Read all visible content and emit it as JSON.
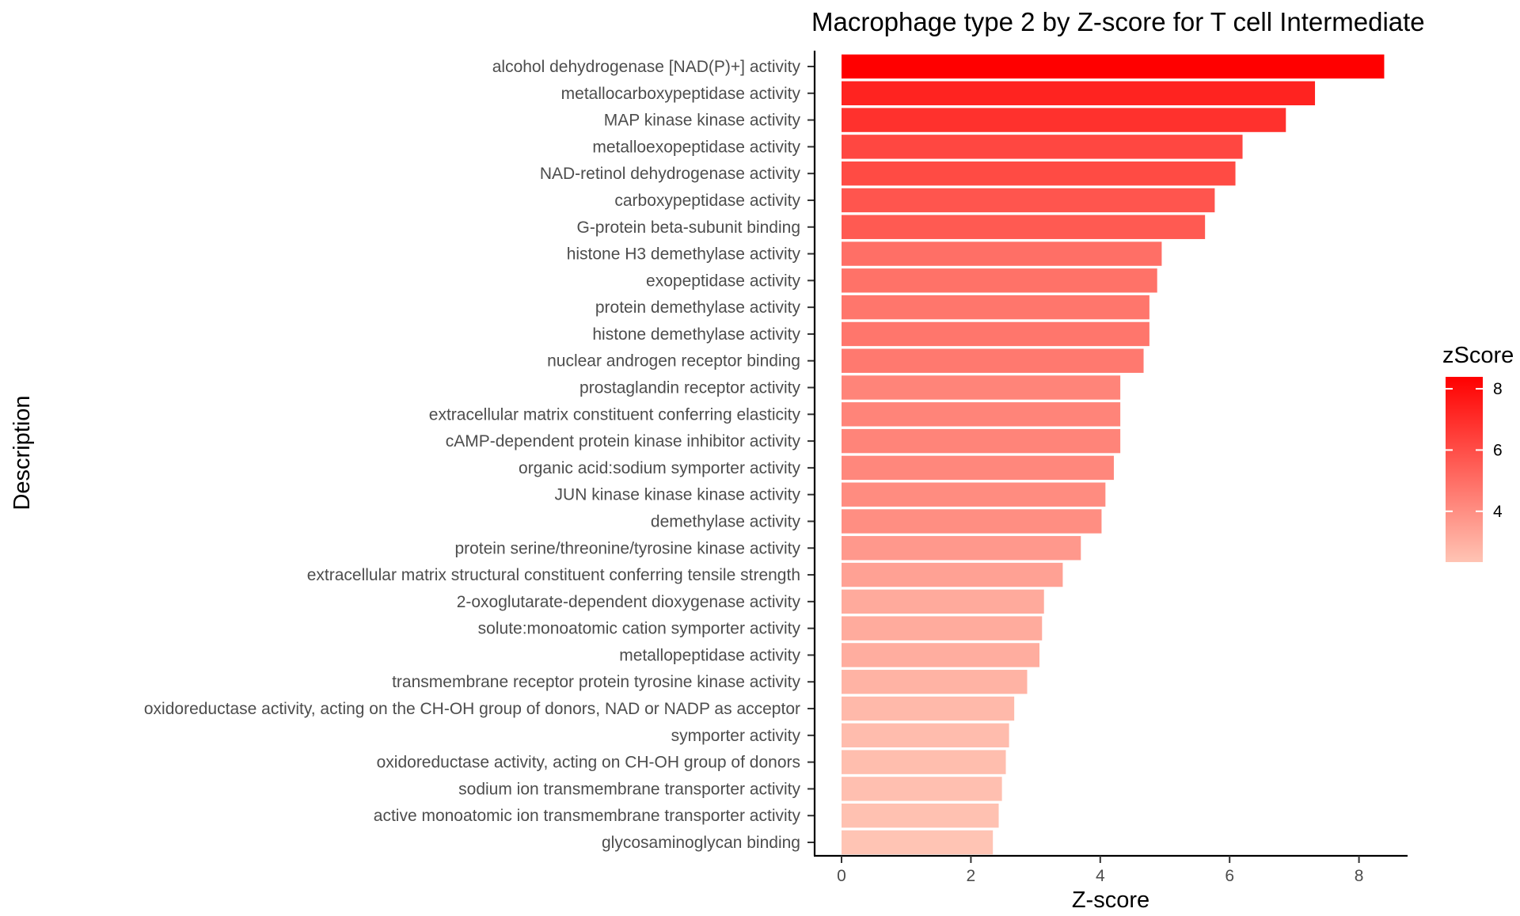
{
  "chart_data": {
    "type": "bar",
    "orientation": "horizontal",
    "title": "Macrophage type 2 by Z-score for T cell Intermediate",
    "xlabel": "Z-score",
    "ylabel": "Description",
    "xlim": [
      -0.4,
      8.8
    ],
    "xticks": [
      0,
      2,
      4,
      6,
      8
    ],
    "grid": false,
    "categories": [
      "alcohol dehydrogenase [NAD(P)+] activity",
      "metallocarboxypeptidase activity",
      "MAP kinase kinase activity",
      "metalloexopeptidase activity",
      "NAD-retinol dehydrogenase activity",
      "carboxypeptidase activity",
      "G-protein beta-subunit binding",
      "histone H3 demethylase activity",
      "exopeptidase activity",
      "protein demethylase activity",
      "histone demethylase activity",
      "nuclear androgen receptor binding",
      "prostaglandin receptor activity",
      "extracellular matrix constituent conferring elasticity",
      "cAMP-dependent protein kinase inhibitor activity",
      "organic acid:sodium symporter activity",
      "JUN kinase kinase kinase activity",
      "demethylase activity",
      "protein serine/threonine/tyrosine kinase activity",
      "extracellular matrix structural constituent conferring tensile strength",
      "2-oxoglutarate-dependent dioxygenase activity",
      "solute:monoatomic cation symporter activity",
      "metallopeptidase activity",
      "transmembrane receptor protein tyrosine kinase activity",
      "oxidoreductase activity, acting on the CH-OH group of donors, NAD or NADP as acceptor",
      "symporter activity",
      "oxidoreductase activity, acting on CH-OH group of donors",
      "sodium ion transmembrane transporter activity",
      "active monoatomic ion transmembrane transporter activity",
      "glycosaminoglycan binding"
    ],
    "values": [
      8.39,
      7.32,
      6.87,
      6.2,
      6.09,
      5.77,
      5.62,
      4.95,
      4.88,
      4.76,
      4.76,
      4.67,
      4.31,
      4.31,
      4.31,
      4.21,
      4.08,
      4.02,
      3.7,
      3.42,
      3.13,
      3.1,
      3.06,
      2.87,
      2.67,
      2.59,
      2.54,
      2.48,
      2.43,
      2.34
    ],
    "legend": {
      "title": "zScore",
      "position": "right",
      "ticks": [
        4,
        6,
        8
      ],
      "range": [
        2.34,
        8.39
      ],
      "color_low": "#ffc4b4",
      "color_high": "#ff0000"
    }
  }
}
